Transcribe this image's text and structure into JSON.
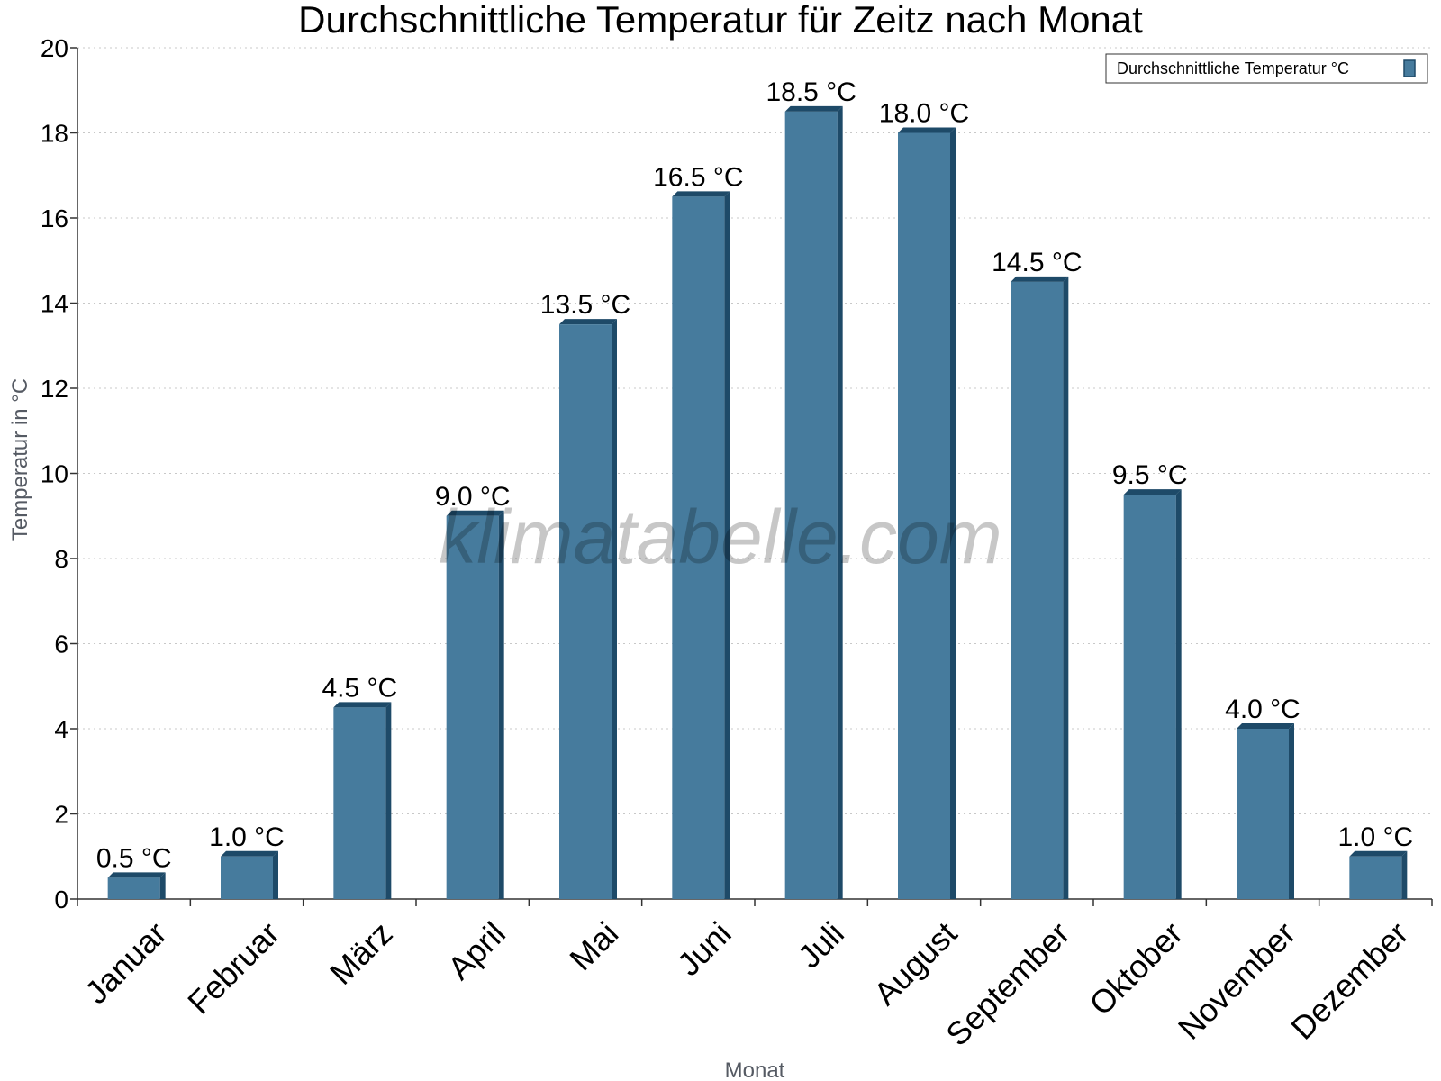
{
  "chart_data": {
    "type": "bar",
    "title": "Durchschnittliche Temperatur für Zeitz nach Monat",
    "xlabel": "Monat",
    "ylabel": "Temperatur in °C",
    "ylim": [
      0,
      20
    ],
    "yticks": [
      0,
      2,
      4,
      6,
      8,
      10,
      12,
      14,
      16,
      18,
      20
    ],
    "grid": true,
    "legend_position": "top-right",
    "categories": [
      "Januar",
      "Februar",
      "März",
      "April",
      "Mai",
      "Juni",
      "Juli",
      "August",
      "September",
      "Oktober",
      "November",
      "Dezember"
    ],
    "series": [
      {
        "name": "Durchschnittliche Temperatur °C",
        "values": [
          0.5,
          1.0,
          4.5,
          9.0,
          13.5,
          16.5,
          18.5,
          18.0,
          14.5,
          9.5,
          4.0,
          1.0
        ],
        "labels": [
          "0.5 °C",
          "1.0 °C",
          "4.5 °C",
          "9.0 °C",
          "13.5 °C",
          "16.5 °C",
          "18.5 °C",
          "18.0 °C",
          "14.5 °C",
          "9.5 °C",
          "4.0 °C",
          "1.0 °C"
        ],
        "color": "#467b9d",
        "shade_color": "#1e4a68"
      }
    ]
  },
  "watermark": "klimatabelle.com"
}
